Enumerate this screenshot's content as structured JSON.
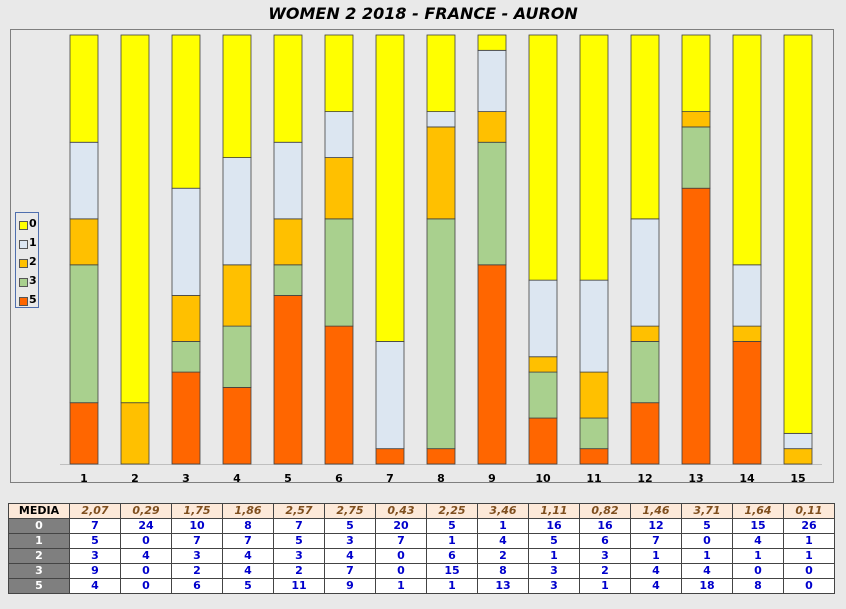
{
  "title": "WOMEN 2 2018 - FRANCE - AURON",
  "colors": {
    "0": "#ffff00",
    "1": "#dce6f1",
    "2": "#ffc000",
    "3": "#a9d08e",
    "5": "#ff6600"
  },
  "chart_data": {
    "type": "bar",
    "stacked": "percent",
    "categories": [
      "1",
      "2",
      "3",
      "4",
      "5",
      "6",
      "7",
      "8",
      "9",
      "10",
      "11",
      "12",
      "13",
      "14",
      "15"
    ],
    "series": [
      {
        "name": "0",
        "values": [
          7,
          24,
          10,
          8,
          7,
          5,
          20,
          5,
          1,
          16,
          16,
          12,
          5,
          15,
          26
        ]
      },
      {
        "name": "1",
        "values": [
          5,
          0,
          7,
          7,
          5,
          3,
          7,
          1,
          4,
          5,
          6,
          7,
          0,
          4,
          1
        ]
      },
      {
        "name": "2",
        "values": [
          3,
          4,
          3,
          4,
          3,
          4,
          0,
          6,
          2,
          1,
          3,
          1,
          1,
          1,
          1
        ]
      },
      {
        "name": "3",
        "values": [
          9,
          0,
          2,
          4,
          2,
          7,
          0,
          15,
          8,
          3,
          2,
          4,
          4,
          0,
          0
        ]
      },
      {
        "name": "5",
        "values": [
          4,
          0,
          6,
          5,
          11,
          9,
          1,
          1,
          13,
          3,
          1,
          4,
          18,
          8,
          0
        ]
      }
    ],
    "legend": "left",
    "grid": false
  },
  "table": {
    "media_label": "MEDIA",
    "media": [
      "2,07",
      "0,29",
      "1,75",
      "1,86",
      "2,57",
      "2,75",
      "0,43",
      "2,25",
      "3,46",
      "1,11",
      "0,82",
      "1,46",
      "3,71",
      "1,64",
      "0,11"
    ],
    "rows": [
      {
        "label": "0",
        "values": [
          "7",
          "24",
          "10",
          "8",
          "7",
          "5",
          "20",
          "5",
          "1",
          "16",
          "16",
          "12",
          "5",
          "15",
          "26"
        ]
      },
      {
        "label": "1",
        "values": [
          "5",
          "0",
          "7",
          "7",
          "5",
          "3",
          "7",
          "1",
          "4",
          "5",
          "6",
          "7",
          "0",
          "4",
          "1"
        ]
      },
      {
        "label": "2",
        "values": [
          "3",
          "4",
          "3",
          "4",
          "3",
          "4",
          "0",
          "6",
          "2",
          "1",
          "3",
          "1",
          "1",
          "1",
          "1"
        ]
      },
      {
        "label": "3",
        "values": [
          "9",
          "0",
          "2",
          "4",
          "2",
          "7",
          "0",
          "15",
          "8",
          "3",
          "2",
          "4",
          "4",
          "0",
          "0"
        ]
      },
      {
        "label": "5",
        "values": [
          "4",
          "0",
          "6",
          "5",
          "11",
          "9",
          "1",
          "1",
          "13",
          "3",
          "1",
          "4",
          "18",
          "8",
          "0"
        ]
      }
    ]
  }
}
